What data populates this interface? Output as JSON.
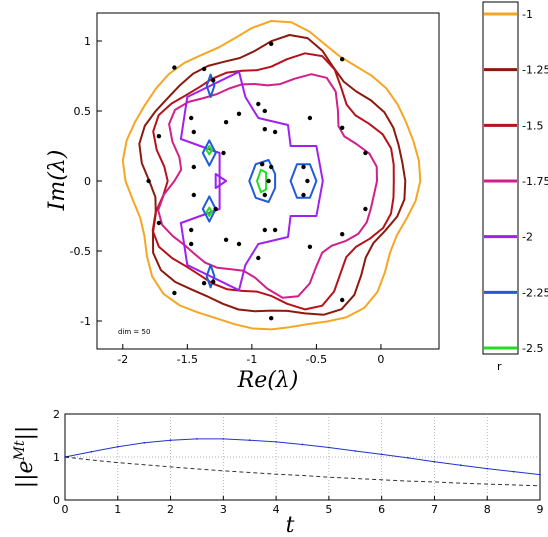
{
  "chart_data": [
    {
      "type": "contour",
      "xlabel": "Re(λ)",
      "ylabel": "Im(λ)",
      "xlim": [
        -2.2,
        0.45
      ],
      "ylim": [
        -1.2,
        1.2
      ],
      "xticks": [
        "-2",
        "-1.5",
        "-1",
        "-0.5",
        "0"
      ],
      "yticks": [
        "1",
        "0.5",
        "0",
        "-0.5",
        "-1"
      ],
      "annotation": "dim = 50",
      "levels": [
        {
          "value": -1,
          "color": "#f5a623"
        },
        {
          "value": -1.25,
          "color": "#8b1a0e"
        },
        {
          "value": -1.5,
          "color": "#b5121b"
        },
        {
          "value": -1.75,
          "color": "#d0208a"
        },
        {
          "value": -2,
          "color": "#a020f0"
        },
        {
          "value": -2.25,
          "color": "#1f5bd6"
        },
        {
          "value": -2.5,
          "color": "#22dd22"
        }
      ],
      "colorbar_labels": [
        "-1",
        "-1.25",
        "-1.5",
        "-1.75",
        "-2",
        "-2.25",
        "-2.5"
      ],
      "colorbar_title": "r",
      "eigenvalues": [
        [
          -0.85,
          0.98
        ],
        [
          -0.3,
          0.87
        ],
        [
          -1.6,
          0.81
        ],
        [
          -1.37,
          0.8
        ],
        [
          -1.3,
          0.72
        ],
        [
          -0.95,
          0.55
        ],
        [
          -0.9,
          0.5
        ],
        [
          -1.1,
          0.48
        ],
        [
          -1.47,
          0.45
        ],
        [
          -0.55,
          0.45
        ],
        [
          -1.2,
          0.42
        ],
        [
          -0.9,
          0.37
        ],
        [
          -0.82,
          0.35
        ],
        [
          -0.3,
          0.38
        ],
        [
          -1.45,
          0.35
        ],
        [
          -1.72,
          0.32
        ],
        [
          -1.22,
          0.2
        ],
        [
          -0.12,
          0.2
        ],
        [
          -0.92,
          0.12
        ],
        [
          -0.85,
          0.1
        ],
        [
          -0.6,
          0.1
        ],
        [
          -1.45,
          0.1
        ],
        [
          -1.8,
          0.0
        ],
        [
          -0.87,
          0.0
        ],
        [
          -0.57,
          0.0
        ],
        [
          -1.45,
          -0.1
        ],
        [
          -0.9,
          -0.1
        ],
        [
          -0.6,
          -0.1
        ],
        [
          -1.28,
          -0.2
        ],
        [
          -0.12,
          -0.2
        ],
        [
          -1.72,
          -0.3
        ],
        [
          -1.47,
          -0.35
        ],
        [
          -0.9,
          -0.35
        ],
        [
          -0.82,
          -0.35
        ],
        [
          -0.3,
          -0.38
        ],
        [
          -1.2,
          -0.42
        ],
        [
          -1.1,
          -0.45
        ],
        [
          -0.95,
          -0.55
        ],
        [
          -0.55,
          -0.47
        ],
        [
          -1.47,
          -0.45
        ],
        [
          -1.3,
          -0.72
        ],
        [
          -1.37,
          -0.73
        ],
        [
          -1.6,
          -0.8
        ],
        [
          -0.3,
          -0.85
        ],
        [
          -0.85,
          -0.98
        ]
      ]
    },
    {
      "type": "line",
      "xlabel": "t",
      "ylabel": "||e^{Mt}||",
      "xlim": [
        0,
        9
      ],
      "ylim": [
        0,
        2
      ],
      "xticks": [
        "0",
        "1",
        "2",
        "3",
        "4",
        "5",
        "6",
        "7",
        "8",
        "9"
      ],
      "yticks": [
        "2",
        "1",
        "0"
      ],
      "grid": true,
      "series": [
        {
          "style": "solid",
          "color": "#2233cc",
          "markers": "dot",
          "x": [
            0,
            0.5,
            1,
            1.5,
            2,
            2.5,
            3,
            3.5,
            4,
            4.5,
            5,
            5.5,
            6,
            6.5,
            7,
            7.5,
            8,
            8.5,
            9
          ],
          "y": [
            1.0,
            1.12,
            1.24,
            1.33,
            1.39,
            1.42,
            1.42,
            1.39,
            1.35,
            1.29,
            1.22,
            1.14,
            1.06,
            0.98,
            0.89,
            0.81,
            0.73,
            0.66,
            0.59
          ]
        },
        {
          "style": "dashed",
          "color": "#333333",
          "x": [
            0,
            0.5,
            1,
            1.5,
            2,
            2.5,
            3,
            3.5,
            4,
            4.5,
            5,
            5.5,
            6,
            6.5,
            7,
            7.5,
            8,
            8.5,
            9
          ],
          "y": [
            1.0,
            0.93,
            0.87,
            0.82,
            0.77,
            0.72,
            0.68,
            0.64,
            0.6,
            0.57,
            0.53,
            0.5,
            0.47,
            0.44,
            0.42,
            0.39,
            0.37,
            0.35,
            0.33
          ]
        }
      ]
    }
  ]
}
